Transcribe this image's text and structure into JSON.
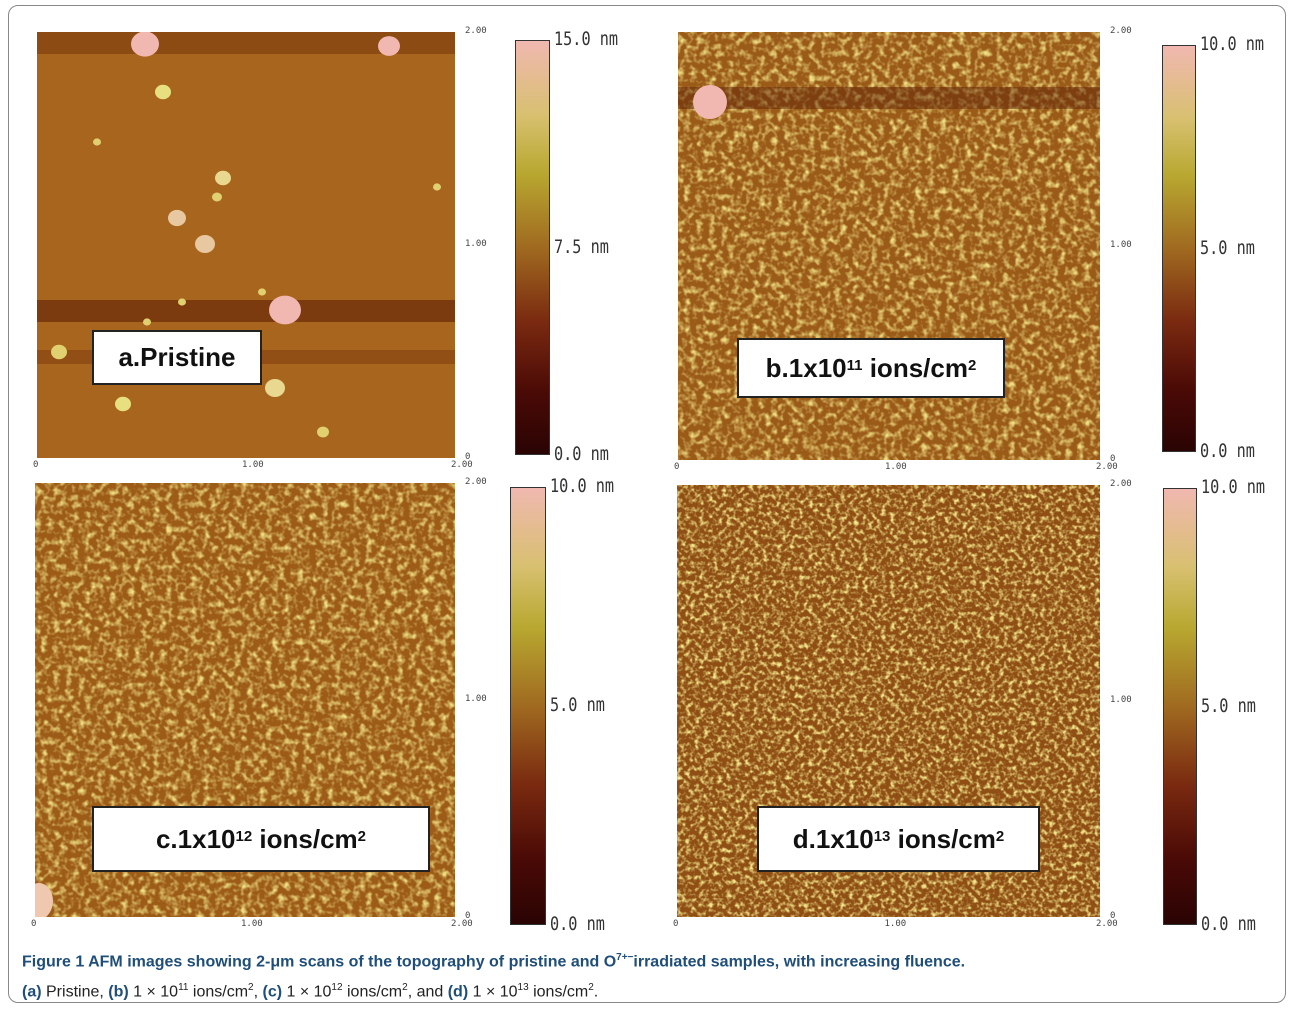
{
  "panels": [
    {
      "label": {
        "text": "a.Pristine"
      },
      "colorbar": [
        "15.0 nm",
        "7.5 nm",
        "0.0 nm"
      ],
      "x_ticks": [
        "0",
        "1.00",
        "2.00"
      ],
      "y_ticks": [
        "2.00",
        "1.00",
        "0"
      ]
    },
    {
      "label": {
        "text": "b.1x10",
        "sup": "11",
        "text2": " ions/cm",
        "sup2": "2"
      },
      "colorbar": [
        "10.0 nm",
        "5.0 nm",
        "0.0 nm"
      ],
      "x_ticks": [
        "0",
        "1.00",
        "2.00"
      ],
      "y_ticks": [
        "2.00",
        "1.00",
        "0"
      ]
    },
    {
      "label": {
        "text": "c.1x10",
        "sup": "12",
        "text2": " ions/cm",
        "sup2": "2"
      },
      "colorbar": [
        "10.0 nm",
        "5.0 nm",
        "0.0 nm"
      ],
      "x_ticks": [
        "0",
        "1.00",
        "2.00"
      ],
      "y_ticks": [
        "2.00",
        "1.00",
        "0"
      ]
    },
    {
      "label": {
        "text": "d.1x10",
        "sup": "13",
        "text2": " ions/cm",
        "sup2": "2"
      },
      "colorbar": [
        "10.0 nm",
        "5.0 nm",
        "0.0 nm"
      ],
      "x_ticks": [
        "0",
        "1.00",
        "2.00"
      ],
      "y_ticks": [
        "2.00",
        "1.00",
        "0"
      ]
    }
  ],
  "caption": [
    [
      {
        "t": "Figure 1 AFM images showing 2-μm scans of the topography of pristine and O"
      },
      {
        "sup": "7+−"
      },
      {
        "t": "irradiated samples, with increasing fluence."
      }
    ],
    [
      {
        "b": "(a)"
      },
      {
        "t": " Pristine, "
      },
      {
        "b": "(b)"
      },
      {
        "t": " 1 × 10"
      },
      {
        "sup": "11"
      },
      {
        "t": " ions/cm"
      },
      {
        "sup": "2"
      },
      {
        "t": ", "
      },
      {
        "b": "(c)"
      },
      {
        "t": " 1 × 10"
      },
      {
        "sup": "12"
      },
      {
        "t": " ions/cm"
      },
      {
        "sup": "2"
      },
      {
        "t": ", and "
      },
      {
        "b": "(d)"
      },
      {
        "t": " 1 × 10"
      },
      {
        "sup": "13"
      },
      {
        "t": " ions/cm"
      },
      {
        "sup": "2"
      },
      {
        "t": "."
      }
    ]
  ]
}
